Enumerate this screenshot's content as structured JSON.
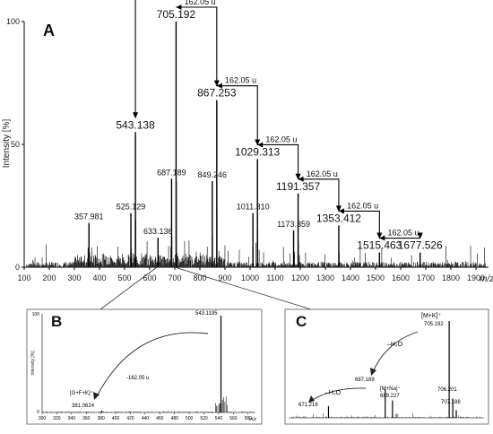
{
  "chart_data": [
    {
      "panel": "A",
      "type": "bar",
      "xlabel": "m/z",
      "ylabel": "Intensity [%]",
      "xlim": [
        100,
        1950
      ],
      "ylim": [
        0,
        100
      ],
      "x_ticks": [
        "100",
        "200",
        "300",
        "400",
        "500",
        "600",
        "700",
        "800",
        "900",
        "1000",
        "1100",
        "1200",
        "1300",
        "1400",
        "1500",
        "1600",
        "1700",
        "1800",
        "1900"
      ],
      "y_ticks": [
        "0",
        "50",
        "100"
      ],
      "peaks": [
        {
          "x": 357.981,
          "y": 18,
          "label": "357.981"
        },
        {
          "x": 525.129,
          "y": 22,
          "label": "525.129"
        },
        {
          "x": 543.138,
          "y": 55,
          "label": "543.138"
        },
        {
          "x": 633.136,
          "y": 12,
          "label": "633.136"
        },
        {
          "x": 687.189,
          "y": 36,
          "label": "687.189"
        },
        {
          "x": 705.192,
          "y": 100,
          "label": "705.192"
        },
        {
          "x": 849.246,
          "y": 35,
          "label": "849.246"
        },
        {
          "x": 867.253,
          "y": 68,
          "label": "867.253"
        },
        {
          "x": 1011.31,
          "y": 22,
          "label": "1011.310"
        },
        {
          "x": 1029.313,
          "y": 44,
          "label": "1029.313"
        },
        {
          "x": 1173.359,
          "y": 15,
          "label": "1173.359"
        },
        {
          "x": 1191.357,
          "y": 30,
          "label": "1191.357"
        },
        {
          "x": 1353.412,
          "y": 17,
          "label": "1353.412"
        },
        {
          "x": 1515.463,
          "y": 6,
          "label": "1515.463"
        },
        {
          "x": 1677.526,
          "y": 6,
          "label": "1677.526"
        }
      ],
      "annotations": [
        "162.05 u",
        "162.05 u",
        "162.05 u",
        "162.05 u",
        "162.05 u",
        "162.05 u",
        "162.05 u"
      ]
    },
    {
      "panel": "B",
      "type": "bar",
      "xlabel": "m/z",
      "ylabel": "Intensity [%]",
      "x_ticks": [
        "300",
        "320",
        "340",
        "360",
        "380",
        "400",
        "420",
        "440",
        "460",
        "480",
        "500",
        "520",
        "540",
        "560",
        "580"
      ],
      "y_ticks": [
        "0",
        "100"
      ],
      "peaks": [
        {
          "x": 381.0624,
          "y": 2,
          "label": "381.0624"
        },
        {
          "x": 543.1195,
          "y": 100,
          "label": "543.1195"
        }
      ],
      "annotations": [
        "-162.05 u",
        "[G+F+K]⁺"
      ]
    },
    {
      "panel": "C",
      "type": "bar",
      "peaks": [
        {
          "x": 671.216,
          "y": 12,
          "label": "671.216"
        },
        {
          "x": 687.189,
          "y": 30,
          "label": "687.189"
        },
        {
          "x": 689.227,
          "y": 18,
          "label": "689.227"
        },
        {
          "x": 705.192,
          "y": 100,
          "label": "705.192"
        },
        {
          "x": 706.201,
          "y": 20,
          "label": "706.201"
        },
        {
          "x": 707.188,
          "y": 8,
          "label": "707.188"
        }
      ],
      "annotations": [
        "[M+K]⁺",
        "–H₂O",
        "[M+Na]⁺",
        "–H₂O"
      ]
    }
  ]
}
